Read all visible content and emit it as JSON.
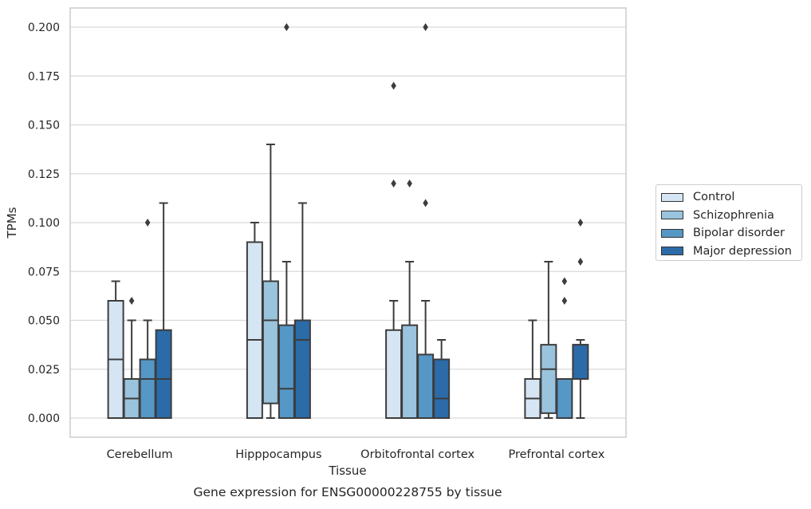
{
  "chart_data": {
    "type": "box",
    "title": "Gene expression for ENSG00000228755 by tissue",
    "xlabel": "Tissue",
    "ylabel": "TPMs",
    "ylim": [
      -0.01,
      0.21
    ],
    "yticks": [
      "0.000",
      "0.025",
      "0.050",
      "0.075",
      "0.100",
      "0.125",
      "0.150",
      "0.175",
      "0.200"
    ],
    "ytick_values": [
      0,
      0.025,
      0.05,
      0.075,
      0.1,
      0.125,
      0.15,
      0.175,
      0.2
    ],
    "grid": "horizontal",
    "legend_placement": "right",
    "categories": [
      "Cerebellum",
      "Hipppocampus",
      "Orbitofrontal cortex",
      "Prefrontal cortex"
    ],
    "series": [
      {
        "name": "Control",
        "color": "#d6e5f3",
        "boxes": [
          {
            "whisker_low": 0,
            "q1": 0,
            "median": 0.03,
            "q3": 0.06,
            "whisker_high": 0.07,
            "outliers": []
          },
          {
            "whisker_low": 0,
            "q1": 0,
            "median": 0.04,
            "q3": 0.09,
            "whisker_high": 0.1,
            "outliers": []
          },
          {
            "whisker_low": 0,
            "q1": 0,
            "median": 0,
            "q3": 0.045,
            "whisker_high": 0.06,
            "outliers": [
              0.12,
              0.17
            ]
          },
          {
            "whisker_low": 0,
            "q1": 0,
            "median": 0.01,
            "q3": 0.02,
            "whisker_high": 0.05,
            "outliers": []
          }
        ]
      },
      {
        "name": "Schizophrenia",
        "color": "#9ac4dd",
        "boxes": [
          {
            "whisker_low": 0,
            "q1": 0,
            "median": 0.01,
            "q3": 0.02,
            "whisker_high": 0.05,
            "outliers": [
              0.06
            ]
          },
          {
            "whisker_low": 0,
            "q1": 0.0075,
            "median": 0.05,
            "q3": 0.07,
            "whisker_high": 0.14,
            "outliers": []
          },
          {
            "whisker_low": 0,
            "q1": 0,
            "median": 0,
            "q3": 0.0475,
            "whisker_high": 0.08,
            "outliers": [
              0.12
            ]
          },
          {
            "whisker_low": 0,
            "q1": 0.0025,
            "median": 0.025,
            "q3": 0.0375,
            "whisker_high": 0.08,
            "outliers": []
          }
        ]
      },
      {
        "name": "Bipolar disorder",
        "color": "#5597c5",
        "boxes": [
          {
            "whisker_low": 0,
            "q1": 0,
            "median": 0.02,
            "q3": 0.03,
            "whisker_high": 0.05,
            "outliers": [
              0.1
            ]
          },
          {
            "whisker_low": 0,
            "q1": 0,
            "median": 0.015,
            "q3": 0.0475,
            "whisker_high": 0.08,
            "outliers": [
              0.2
            ]
          },
          {
            "whisker_low": 0,
            "q1": 0,
            "median": 0,
            "q3": 0.0325,
            "whisker_high": 0.06,
            "outliers": [
              0.11,
              0.2
            ]
          },
          {
            "whisker_low": 0,
            "q1": 0,
            "median": 0,
            "q3": 0.02,
            "whisker_high": 0.02,
            "outliers": [
              0.06,
              0.07
            ]
          }
        ]
      },
      {
        "name": "Major depression",
        "color": "#2b6ba8",
        "boxes": [
          {
            "whisker_low": 0,
            "q1": 0,
            "median": 0.02,
            "q3": 0.045,
            "whisker_high": 0.11,
            "outliers": []
          },
          {
            "whisker_low": 0,
            "q1": 0,
            "median": 0.04,
            "q3": 0.05,
            "whisker_high": 0.11,
            "outliers": []
          },
          {
            "whisker_low": 0,
            "q1": 0,
            "median": 0.01,
            "q3": 0.03,
            "whisker_high": 0.04,
            "outliers": []
          },
          {
            "whisker_low": 0,
            "q1": 0.02,
            "median": 0.0375,
            "q3": 0.0375,
            "whisker_high": 0.04,
            "outliers": [
              0.08,
              0.1
            ]
          }
        ]
      }
    ]
  }
}
